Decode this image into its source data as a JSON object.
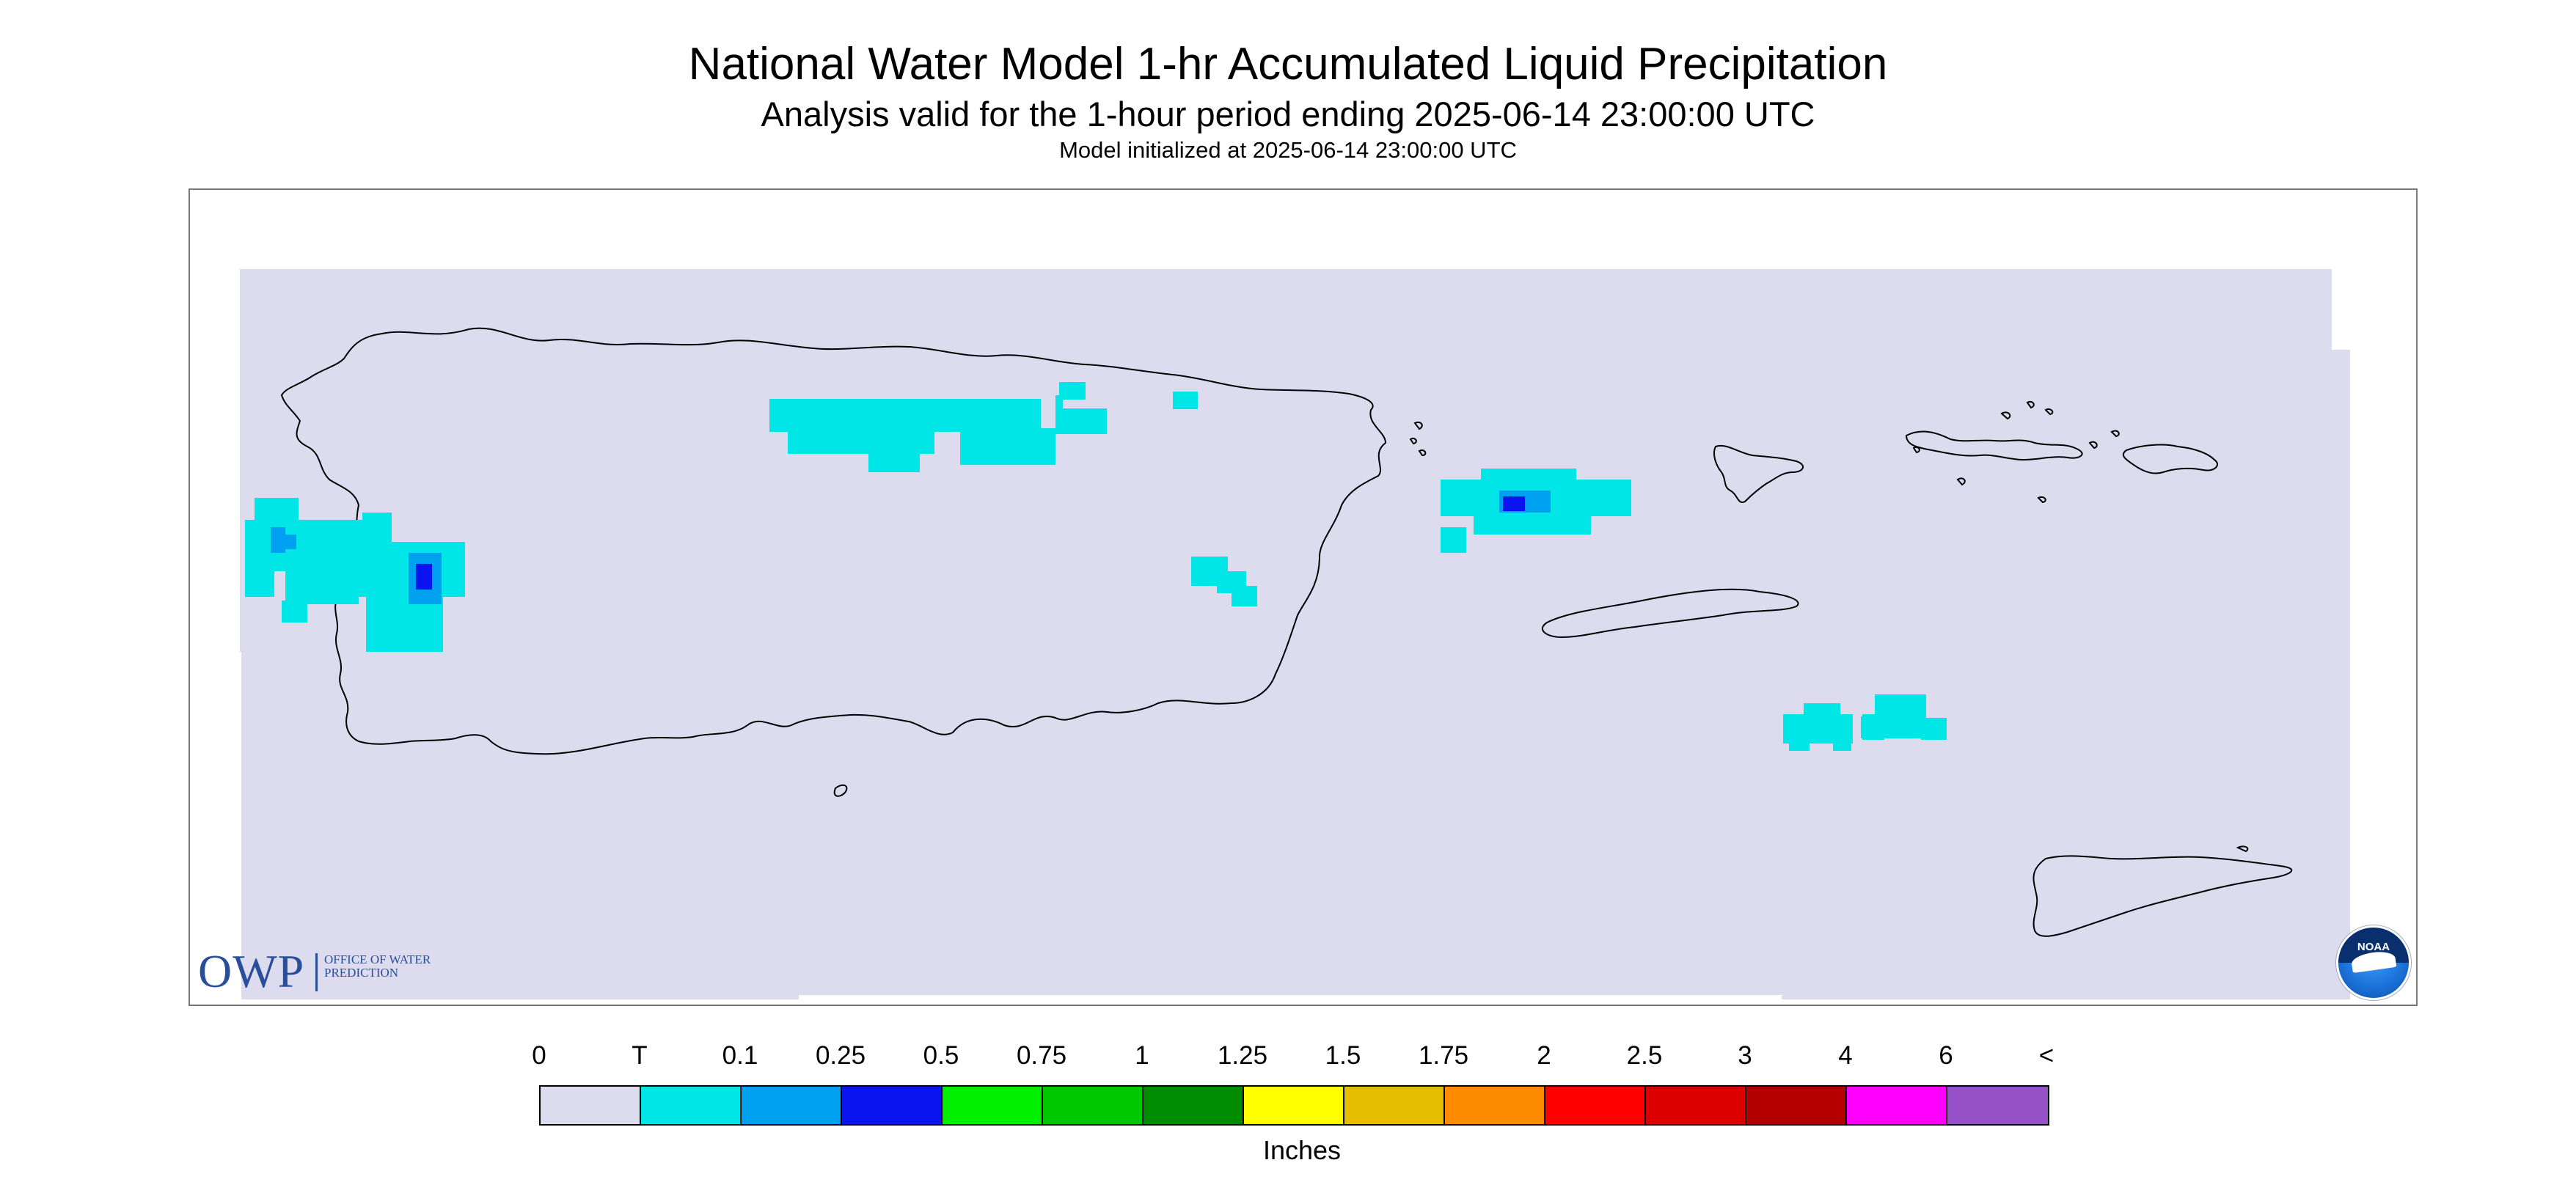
{
  "title": "National Water Model 1-hr Accumulated Liquid Precipitation",
  "subtitle": "Analysis valid for the 1-hour period ending 2025-06-14 23:00:00 UTC",
  "init_text": "Model initialized at 2025-06-14 23:00:00 UTC",
  "colors": {
    "no_precip": "#dcdcee",
    "trace": "#00e6e6",
    "light_blue": "#00a0f0",
    "blue": "#0a14f0",
    "coastline": "#000000"
  },
  "logos": {
    "owp_abbrev": "OWP",
    "owp_full": "Office of Water Prediction",
    "noaa": "NOAA"
  },
  "legend": {
    "labels": [
      "0",
      "T",
      "0.1",
      "0.25",
      "0.5",
      "0.75",
      "1",
      "1.25",
      "1.5",
      "1.75",
      "2",
      "2.5",
      "3",
      "4",
      "6",
      "<"
    ],
    "colors": [
      "#dcdcee",
      "#00e6e6",
      "#00a0f0",
      "#0a14f0",
      "#00f000",
      "#00c800",
      "#008c00",
      "#ffff00",
      "#e6be00",
      "#ff8c00",
      "#ff0000",
      "#dc0000",
      "#b40000",
      "#ff00ff",
      "#9650c8"
    ],
    "unit": "Inches"
  }
}
